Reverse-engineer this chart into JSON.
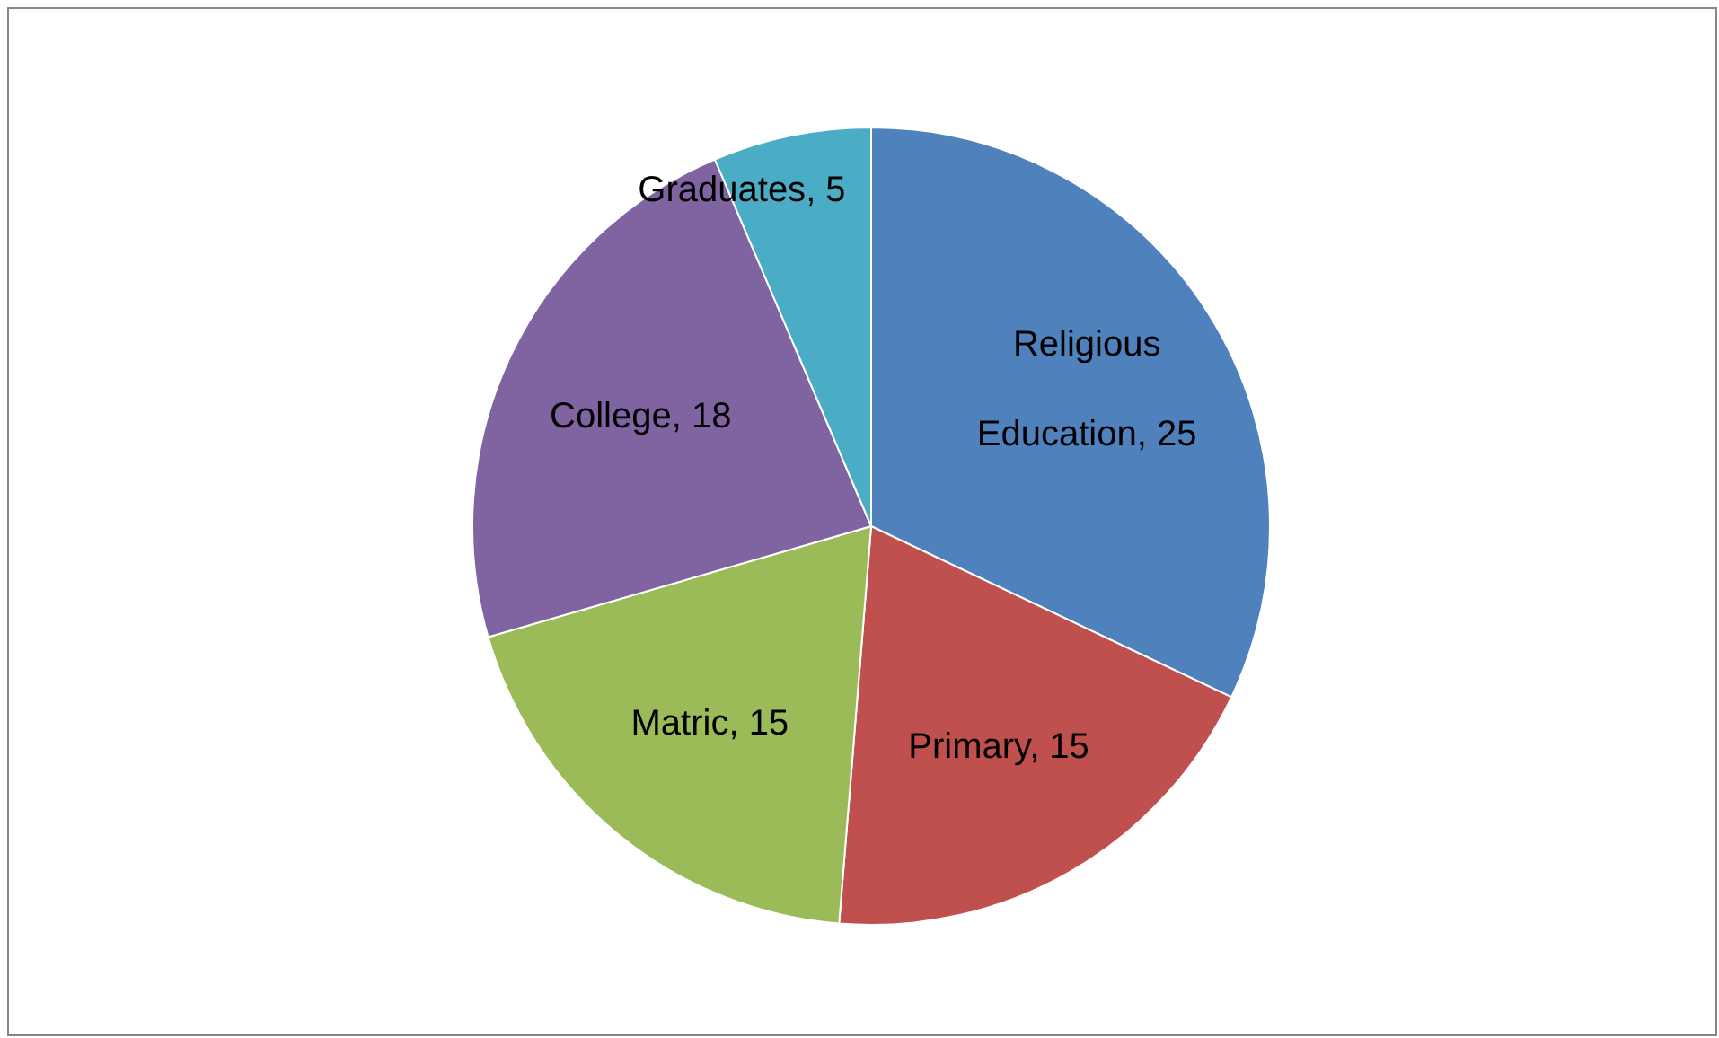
{
  "chart_data": {
    "type": "pie",
    "categories": [
      "Religious Education",
      "Primary",
      "Matric",
      "College",
      "Graduates"
    ],
    "values": [
      25,
      15,
      15,
      18,
      5
    ],
    "colors": [
      "#4f81bd",
      "#c0504d",
      "#9bbb59",
      "#8064a2",
      "#4bacc6"
    ],
    "value_labels": [
      ", 25",
      ", 15",
      ", 15",
      ", 18",
      ", 5"
    ]
  }
}
